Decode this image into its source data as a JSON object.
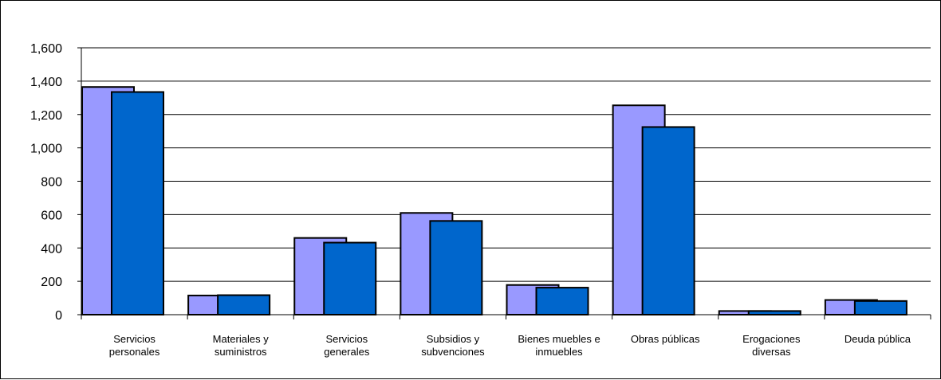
{
  "chart_data": {
    "type": "bar",
    "title": "",
    "xlabel": "",
    "ylabel": "",
    "ylim": [
      0,
      1600
    ],
    "yticks": [
      0,
      200,
      400,
      600,
      800,
      1000,
      1200,
      1400,
      1600
    ],
    "ytick_labels": [
      "0",
      "200",
      "400",
      "600",
      "800",
      "1,000",
      "1,200",
      "1,400",
      "1,600"
    ],
    "grid": "horizontal",
    "legend": "none",
    "categories": [
      [
        "Servicios",
        "personales"
      ],
      [
        "Materiales y",
        "suministros"
      ],
      [
        "Servicios",
        "generales"
      ],
      [
        "Subsidios y",
        "subvenciones"
      ],
      [
        "Bienes muebles e",
        "inmuebles"
      ],
      [
        "Obras públicas"
      ],
      [
        "Erogaciones",
        "diversas"
      ],
      [
        "Deuda pública"
      ]
    ],
    "series": [
      {
        "color": "#9999ff",
        "values": [
          1365,
          115,
          460,
          610,
          178,
          1255,
          22,
          88
        ]
      },
      {
        "color": "#0066cc",
        "values": [
          1335,
          117,
          432,
          562,
          162,
          1125,
          22,
          82
        ]
      }
    ]
  }
}
